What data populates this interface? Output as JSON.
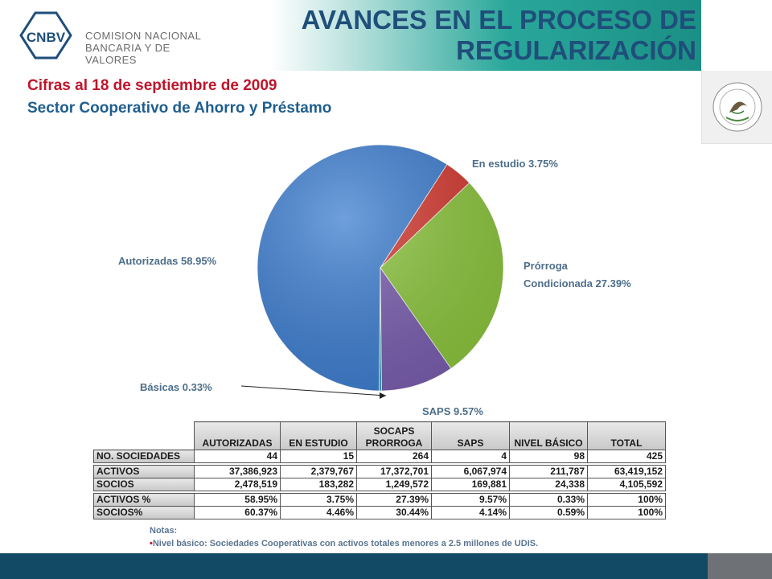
{
  "header": {
    "logo_abbr": "CNBV",
    "logo_line1": "COMISION NACIONAL",
    "logo_line2": "BANCARIA Y DE VALORES",
    "title_line1": "AVANCES EN EL PROCESO DE",
    "title_line2": "REGULARIZACIÓN",
    "seal_text": "ESTADOS UNIDOS MEXICANOS"
  },
  "subtitle1": "Cifras al 18 de septiembre de 2009",
  "subtitle2": "Sector Cooperativo de Ahorro y Préstamo",
  "colors": {
    "autorizadas": "#3f7fd1",
    "en_estudio": "#d43b32",
    "prorroga": "#8dc63f",
    "saps": "#7b5fb0",
    "basicas": "#35a8b0",
    "title": "#1f4e7a",
    "subtitle1": "#c0142a",
    "subtitle2": "#1f5e8f",
    "footer": "#124a66"
  },
  "chart_data": {
    "type": "pie",
    "slices": [
      {
        "name": "Autorizadas",
        "value": 58.95,
        "label": "Autorizadas  58.95%"
      },
      {
        "name": "En estudio",
        "value": 3.75,
        "label": "En estudio  3.75%"
      },
      {
        "name": "Prórroga Condicionada",
        "value": 27.39,
        "label_line1": "Prórroga",
        "label_line2": "Condicionada  27.39%"
      },
      {
        "name": "SAPS",
        "value": 9.57,
        "label": "SAPS  9.57%"
      },
      {
        "name": "Básicas",
        "value": 0.33,
        "label": "Básicas  0.33%"
      }
    ]
  },
  "table": {
    "headers": {
      "autorizadas": "AUTORIZADAS",
      "en_estudio": "EN ESTUDIO",
      "socaps_line1": "SOCAPS",
      "socaps_line2": "PRORROGA",
      "saps": "SAPS",
      "nivel_basico": "NIVEL BÁSICO",
      "total": "TOTAL"
    },
    "rows": [
      {
        "label": "NO. SOCIEDADES",
        "cells": [
          "44",
          "15",
          "264",
          "4",
          "98",
          "425"
        ]
      },
      {
        "label": "ACTIVOS",
        "cells": [
          "37,386,923",
          "2,379,767",
          "17,372,701",
          "6,067,974",
          "211,787",
          "63,419,152"
        ]
      },
      {
        "label": "SOCIOS",
        "cells": [
          "2,478,519",
          "183,282",
          "1,249,572",
          "169,881",
          "24,338",
          "4,105,592"
        ]
      },
      {
        "label": "ACTIVOS %",
        "cells": [
          "58.95%",
          "3.75%",
          "27.39%",
          "9.57%",
          "0.33%",
          "100%"
        ]
      },
      {
        "label": "SOCIOS%",
        "cells": [
          "60.37%",
          "4.46%",
          "30.44%",
          "4.14%",
          "0.59%",
          "100%"
        ]
      }
    ]
  },
  "notes": {
    "heading": "Notas:",
    "bullet": "•",
    "text": "Nivel básico: Sociedades Cooperativas con activos totales menores a 2.5 millones de UDIS."
  }
}
